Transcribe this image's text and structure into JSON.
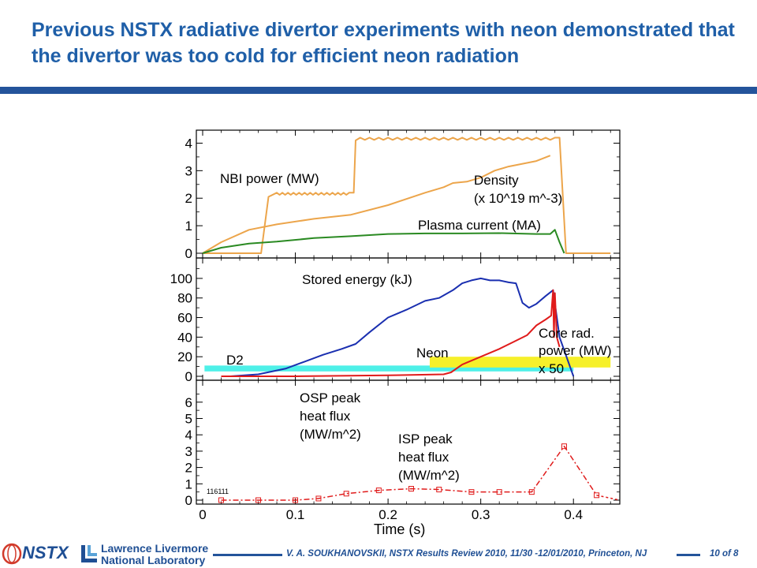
{
  "slide": {
    "title": "Previous NSTX radiative divertor experiments with neon demonstrated that the divertor was too cold for efficient neon radiation"
  },
  "footer": {
    "nstx_logo_text": "NSTX",
    "lab_name_line1": "Lawrence Livermore",
    "lab_name_line2": "National Laboratory",
    "citation": "V. A. SOUKHANOVSKII, NSTX Results Review 2010, 11/30 -12/01/2010, Princeton, NJ",
    "page": "10 of 8"
  },
  "colors": {
    "title": "#1f5fa8",
    "rule": "#24549b",
    "orange": "#eca54b",
    "green": "#2a8a22",
    "blue": "#1a2fb0",
    "red": "#e01b1b",
    "cyan": "#4ef0e8",
    "yellow": "#f6f02a"
  },
  "chart_data": {
    "type": "line",
    "xlabel": "Time (s)",
    "xlim": [
      0,
      0.45
    ],
    "x_ticks": [
      "0",
      "0.1",
      "0.2",
      "0.3",
      "0.4"
    ],
    "shot_label": "116111",
    "panels": [
      {
        "ylim": [
          0,
          4.3
        ],
        "y_ticks": [
          "0",
          "1",
          "2",
          "3",
          "4"
        ],
        "series": [
          {
            "name": "NBI power (MW)",
            "color": "orange",
            "x": [
              0,
              0.063,
              0.071,
              0.08,
              0.083,
              0.086,
              0.089,
              0.092,
              0.095,
              0.098,
              0.101,
              0.104,
              0.107,
              0.11,
              0.113,
              0.116,
              0.119,
              0.122,
              0.125,
              0.128,
              0.131,
              0.134,
              0.137,
              0.14,
              0.143,
              0.146,
              0.149,
              0.152,
              0.155,
              0.158,
              0.163,
              0.165,
              0.17,
              0.175,
              0.18,
              0.185,
              0.19,
              0.195,
              0.2,
              0.205,
              0.21,
              0.215,
              0.22,
              0.225,
              0.23,
              0.235,
              0.24,
              0.245,
              0.25,
              0.255,
              0.26,
              0.265,
              0.27,
              0.275,
              0.28,
              0.285,
              0.29,
              0.295,
              0.3,
              0.305,
              0.31,
              0.315,
              0.32,
              0.325,
              0.33,
              0.335,
              0.34,
              0.345,
              0.35,
              0.355,
              0.36,
              0.365,
              0.37,
              0.375,
              0.38,
              0.385,
              0.392,
              0.44
            ],
            "y": [
              0,
              0,
              2.05,
              2.2,
              2.12,
              2.2,
              2.12,
              2.2,
              2.12,
              2.2,
              2.12,
              2.2,
              2.12,
              2.2,
              2.12,
              2.2,
              2.12,
              2.2,
              2.12,
              2.2,
              2.12,
              2.2,
              2.12,
              2.2,
              2.12,
              2.2,
              2.12,
              2.2,
              2.12,
              2.2,
              2.2,
              4.1,
              4.2,
              4.12,
              4.2,
              4.12,
              4.2,
              4.12,
              4.2,
              4.12,
              4.2,
              4.12,
              4.2,
              4.12,
              4.2,
              4.12,
              4.2,
              4.12,
              4.2,
              4.12,
              4.2,
              4.12,
              4.2,
              4.12,
              4.2,
              4.12,
              4.2,
              4.12,
              4.2,
              4.12,
              4.2,
              4.12,
              4.2,
              4.12,
              4.2,
              4.12,
              4.2,
              4.12,
              4.2,
              4.12,
              4.2,
              4.12,
              4.2,
              4.12,
              4.2,
              4.2,
              0,
              0
            ]
          },
          {
            "name": "Density",
            "color": "orange",
            "x": [
              0,
              0.02,
              0.05,
              0.08,
              0.12,
              0.16,
              0.2,
              0.24,
              0.26,
              0.27,
              0.285,
              0.3,
              0.315,
              0.33,
              0.345,
              0.36,
              0.375
            ],
            "y": [
              0,
              0.4,
              0.85,
              1.05,
              1.25,
              1.4,
              1.75,
              2.2,
              2.4,
              2.55,
              2.6,
              2.75,
              3.0,
              3.15,
              3.25,
              3.35,
              3.55
            ]
          },
          {
            "name": "Plasma current (MA)",
            "color": "green",
            "x": [
              0,
              0.02,
              0.05,
              0.08,
              0.12,
              0.16,
              0.2,
              0.24,
              0.28,
              0.32,
              0.36,
              0.375,
              0.38,
              0.385,
              0.39
            ],
            "y": [
              0,
              0.2,
              0.35,
              0.42,
              0.55,
              0.62,
              0.7,
              0.72,
              0.72,
              0.73,
              0.7,
              0.7,
              0.85,
              0.4,
              0
            ]
          }
        ],
        "annotations": [
          "NBI power (MW)",
          "Density",
          "(x 10^19 m^-3)",
          "Plasma current (MA)"
        ]
      },
      {
        "ylim": [
          0,
          112
        ],
        "y_ticks": [
          "0",
          "20",
          "40",
          "60",
          "80",
          "100"
        ],
        "series": [
          {
            "name": "Stored energy (kJ)",
            "color": "blue",
            "x": [
              0.03,
              0.06,
              0.09,
              0.11,
              0.13,
              0.15,
              0.165,
              0.18,
              0.2,
              0.22,
              0.24,
              0.255,
              0.27,
              0.28,
              0.29,
              0.3,
              0.31,
              0.32,
              0.33,
              0.338,
              0.345,
              0.352,
              0.36,
              0.37,
              0.378,
              0.385,
              0.4
            ],
            "y": [
              0,
              2,
              8,
              15,
              22,
              28,
              33,
              45,
              60,
              68,
              77,
              80,
              88,
              95,
              98,
              100,
              98,
              98,
              96,
              95,
              75,
              70,
              74,
              82,
              88,
              40,
              0
            ]
          },
          {
            "name": "Core rad. power (MW) x 50",
            "color": "red",
            "x": [
              0.02,
              0.1,
              0.2,
              0.26,
              0.268,
              0.28,
              0.3,
              0.32,
              0.335,
              0.35,
              0.36,
              0.37,
              0.376,
              0.378,
              0.379,
              0.38,
              0.382,
              0.385
            ],
            "y": [
              0,
              0,
              1,
              2,
              4,
              12,
              20,
              28,
              35,
              42,
              52,
              58,
              62,
              88,
              40,
              85,
              40,
              30
            ]
          }
        ],
        "bands": [
          {
            "name": "D2",
            "color": "cyan",
            "x": [
              0.002,
              0.4
            ],
            "y": [
              5,
              11
            ]
          },
          {
            "name": "Neon",
            "color": "yellow",
            "x": [
              0.245,
              0.44
            ],
            "y": [
              9,
              20
            ]
          }
        ],
        "annotations": [
          "Stored energy (kJ)",
          "D2",
          "Neon",
          "Core rad.",
          "power (MW)",
          "x 50"
        ]
      },
      {
        "ylim": [
          0,
          7.1
        ],
        "y_ticks": [
          "0",
          "1",
          "2",
          "3",
          "4",
          "5",
          "6"
        ],
        "series": [
          {
            "name": "ISP peak heat flux (MW/m^2)",
            "color": "red",
            "x": [
              0.02,
              0.06,
              0.1,
              0.125,
              0.155,
              0.19,
              0.225,
              0.255,
              0.29,
              0.32,
              0.355,
              0.39,
              0.425
            ],
            "y": [
              0,
              0,
              0,
              0.1,
              0.4,
              0.6,
              0.7,
              0.65,
              0.5,
              0.5,
              0.5,
              3.3,
              0.3
            ]
          },
          {
            "name": "OSP peak heat flux (MW/m^2)",
            "color": "red",
            "x": [
              0.425,
              0.45
            ],
            "y": [
              0.3,
              0
            ]
          }
        ],
        "annotations": [
          "OSP peak",
          "heat flux",
          "(MW/m^2)",
          "ISP peak",
          "heat flux",
          "(MW/m^2)"
        ]
      }
    ]
  }
}
